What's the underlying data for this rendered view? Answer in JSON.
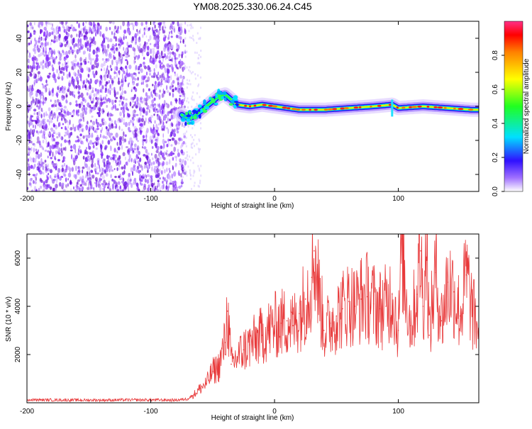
{
  "title": "YM08.2025.330.06.24.C45",
  "chart_data": [
    {
      "type": "heatmap",
      "title": "YM08.2025.330.06.24.C45",
      "xlabel": "Height of straight line (km)",
      "ylabel": "Frequency (Hz)",
      "xlim": [
        -200,
        165
      ],
      "ylim": [
        -50,
        50
      ],
      "xticks": [
        -200,
        -100,
        0,
        100
      ],
      "yticks": [
        -40,
        -20,
        0,
        20,
        40
      ],
      "noise_region_x": [
        -200,
        -75
      ],
      "signal_track": {
        "x": [
          -75,
          -70,
          -65,
          -60,
          -55,
          -50,
          -45,
          -40,
          -35,
          -30,
          -20,
          -10,
          0,
          20,
          40,
          60,
          80,
          95,
          100,
          120,
          140,
          160
        ],
        "freq_hz": [
          -5,
          -7,
          -6,
          -3,
          0,
          3,
          6,
          7,
          4,
          1,
          0,
          1,
          0,
          -2,
          -2,
          -1,
          0,
          1,
          -1,
          0,
          -1,
          -2
        ]
      },
      "colorbar": {
        "label": "Normalized spectral amplitude",
        "range": [
          0.0,
          1.0
        ],
        "ticks": [
          "0.0",
          "0.2",
          "0.4",
          "0.6",
          "0.8"
        ]
      }
    },
    {
      "type": "line",
      "xlabel": "Height of straight line (km)",
      "ylabel": "SNR (10 * v/v)",
      "xlim": [
        -200,
        165
      ],
      "ylim": [
        0,
        7000
      ],
      "xticks": [
        -200,
        -100,
        0,
        100
      ],
      "yticks": [
        2000,
        4000,
        6000
      ],
      "series_color": "#e8393a",
      "series": [
        {
          "name": "SNR",
          "x": [
            -200,
            -150,
            -100,
            -80,
            -70,
            -65,
            -60,
            -55,
            -50,
            -45,
            -40,
            -38,
            -35,
            -30,
            -25,
            -20,
            -15,
            -10,
            -5,
            0,
            5,
            10,
            15,
            20,
            25,
            30,
            32,
            35,
            40,
            45,
            50,
            55,
            60,
            65,
            70,
            75,
            80,
            85,
            90,
            95,
            100,
            103,
            105,
            110,
            115,
            118,
            120,
            123,
            125,
            130,
            135,
            140,
            145,
            150,
            155,
            160,
            165
          ],
          "y": [
            120,
            110,
            120,
            110,
            160,
            350,
            600,
            800,
            1300,
            1500,
            2500,
            3800,
            1600,
            1900,
            2200,
            2400,
            2600,
            2800,
            3000,
            3200,
            3300,
            3400,
            3200,
            3700,
            4300,
            5200,
            6300,
            5000,
            3000,
            3300,
            3600,
            3900,
            4200,
            4000,
            4300,
            4400,
            4100,
            3900,
            4000,
            4500,
            3000,
            6800,
            5000,
            3200,
            4500,
            6300,
            4000,
            7000,
            2800,
            5400,
            3400,
            5000,
            4600,
            3600,
            5300,
            3700,
            3100
          ]
        }
      ]
    }
  ]
}
